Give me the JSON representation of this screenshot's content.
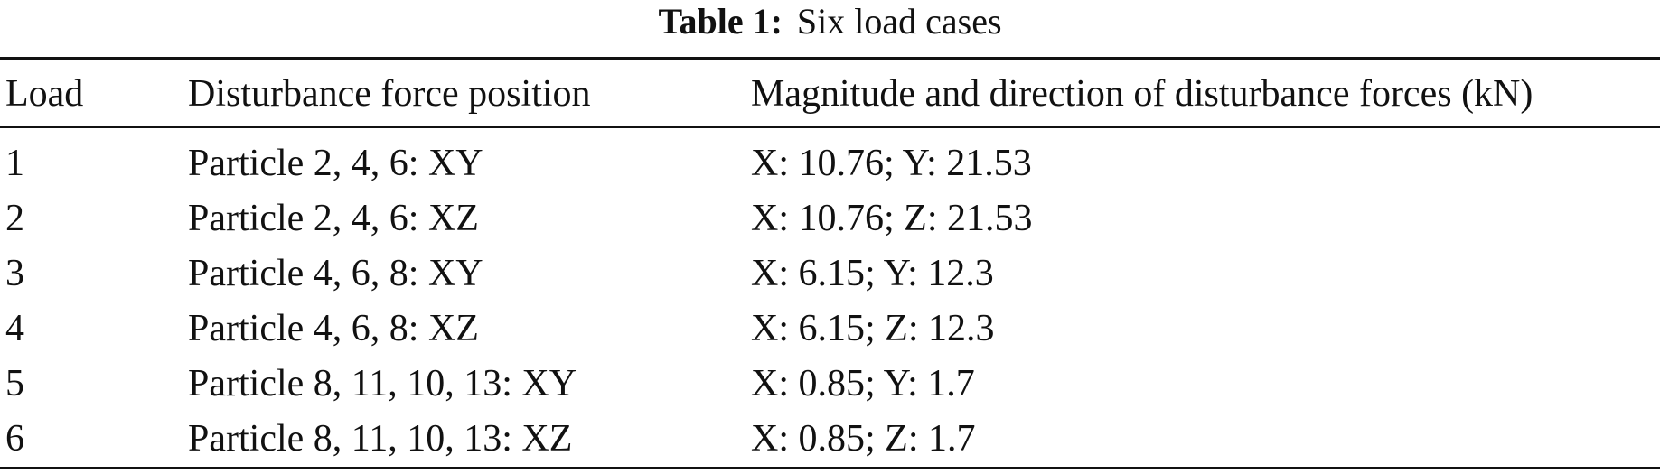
{
  "caption": {
    "label": "Table 1:",
    "text": "Six load cases"
  },
  "table": {
    "headers": [
      "Load",
      "Disturbance force position",
      "Magnitude and direction of disturbance forces (kN)"
    ],
    "rows": [
      [
        "1",
        "Particle 2, 4, 6: XY",
        "X: 10.76; Y: 21.53"
      ],
      [
        "2",
        "Particle 2, 4, 6: XZ",
        "X: 10.76; Z: 21.53"
      ],
      [
        "3",
        "Particle 4, 6, 8: XY",
        "X: 6.15; Y: 12.3"
      ],
      [
        "4",
        "Particle 4, 6, 8: XZ",
        "X: 6.15; Z: 12.3"
      ],
      [
        "5",
        "Particle 8, 11, 10, 13: XY",
        "X: 0.85; Y: 1.7"
      ],
      [
        "6",
        "Particle 8, 11, 10, 13: XZ",
        "X: 0.85; Z: 1.7"
      ]
    ]
  }
}
